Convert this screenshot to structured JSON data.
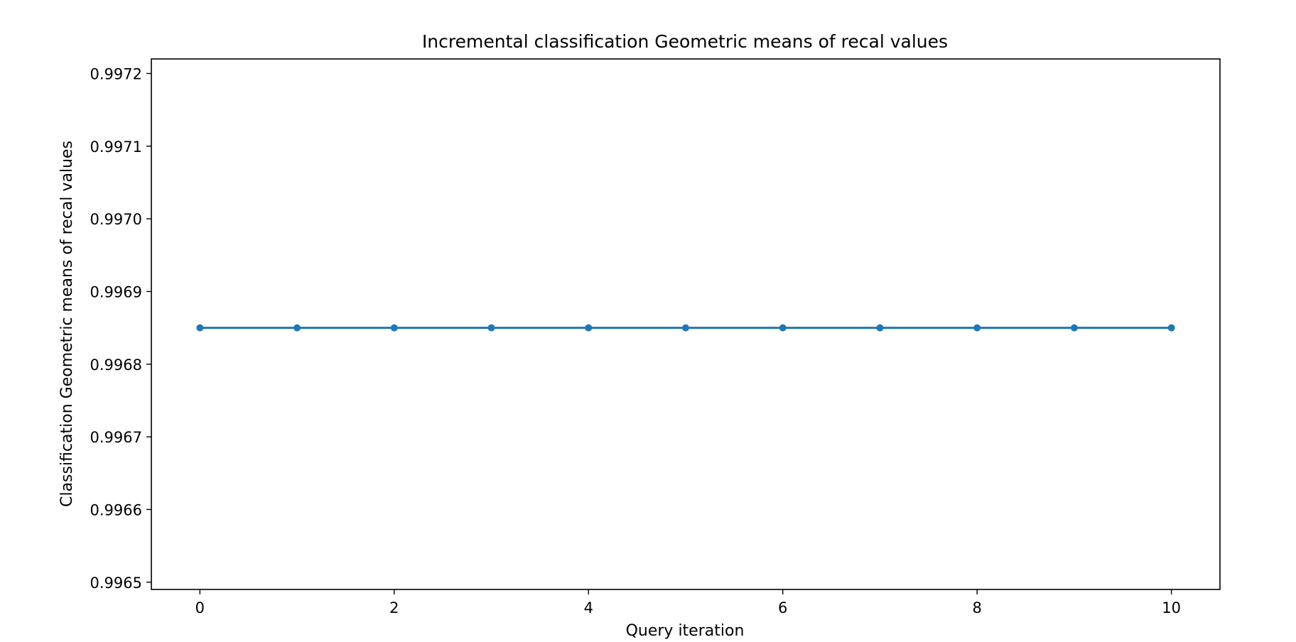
{
  "chart_data": {
    "type": "line",
    "title": "Incremental classification Geometric means of recal values",
    "xlabel": "Query iteration",
    "ylabel": "Classification Geometric means of recal values",
    "x": [
      0,
      1,
      2,
      3,
      4,
      5,
      6,
      7,
      8,
      9,
      10
    ],
    "series": [
      {
        "values": [
          0.99685,
          0.99685,
          0.99685,
          0.99685,
          0.99685,
          0.99685,
          0.99685,
          0.99685,
          0.99685,
          0.99685,
          0.99685
        ],
        "color": "#1f77b4"
      }
    ],
    "xlim": [
      -0.5,
      10.5
    ],
    "ylim": [
      0.99649,
      0.99722
    ],
    "xticks": [
      0,
      2,
      4,
      6,
      8,
      10
    ],
    "xtick_labels": [
      "0",
      "2",
      "4",
      "6",
      "8",
      "10"
    ],
    "yticks": [
      0.9965,
      0.9966,
      0.9967,
      0.9968,
      0.9969,
      0.997,
      0.9971,
      0.9972
    ],
    "ytick_labels": [
      "0.9965",
      "0.9966",
      "0.9967",
      "0.9968",
      "0.9969",
      "0.9970",
      "0.9971",
      "0.9972"
    ],
    "grid": false,
    "legend": "none",
    "marker": "circle"
  }
}
